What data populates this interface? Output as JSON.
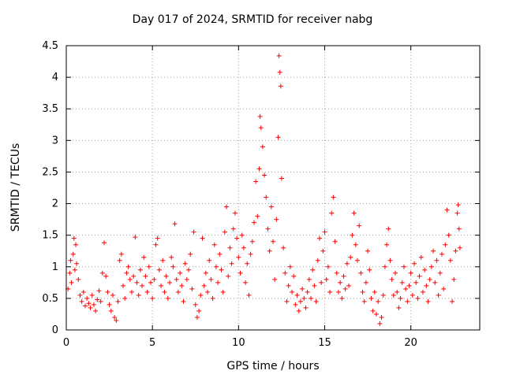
{
  "chart_data": {
    "type": "scatter",
    "title": "Day 017 of 2024, SRMTID for receiver nabg",
    "xlabel": "GPS time / hours",
    "ylabel": "SRMTID / TECUs",
    "xlim": [
      0,
      24
    ],
    "ylim": [
      0,
      4.5
    ],
    "xticks": [
      0,
      5,
      10,
      15,
      20
    ],
    "xtick_labels": [
      "0",
      "5",
      "10",
      "15",
      "20"
    ],
    "yticks": [
      0,
      0.5,
      1,
      1.5,
      2,
      2.5,
      3,
      3.5,
      4,
      4.5
    ],
    "ytick_labels": [
      "0",
      "0.5",
      "1",
      "1.5",
      "2",
      "2.5",
      "3",
      "3.5",
      "4",
      "4.5"
    ],
    "grid": true,
    "marker": "+",
    "color": "#ff0000",
    "series": [
      {
        "name": "SRMTID",
        "points": [
          [
            0.1,
            0.65
          ],
          [
            0.2,
            0.9
          ],
          [
            0.25,
            1.1
          ],
          [
            0.3,
            0.75
          ],
          [
            0.4,
            1.2
          ],
          [
            0.45,
            1.45
          ],
          [
            0.5,
            0.95
          ],
          [
            0.55,
            1.35
          ],
          [
            0.6,
            1.05
          ],
          [
            0.7,
            0.8
          ],
          [
            0.8,
            0.55
          ],
          [
            0.9,
            0.45
          ],
          [
            1.0,
            0.6
          ],
          [
            1.1,
            0.38
          ],
          [
            1.2,
            0.5
          ],
          [
            1.3,
            0.42
          ],
          [
            1.4,
            0.35
          ],
          [
            1.5,
            0.55
          ],
          [
            1.6,
            0.4
          ],
          [
            1.7,
            0.3
          ],
          [
            1.8,
            0.48
          ],
          [
            1.9,
            0.62
          ],
          [
            2.0,
            0.45
          ],
          [
            2.1,
            0.9
          ],
          [
            2.2,
            1.38
          ],
          [
            2.3,
            0.85
          ],
          [
            2.4,
            0.6
          ],
          [
            2.5,
            0.4
          ],
          [
            2.6,
            0.3
          ],
          [
            2.7,
            0.55
          ],
          [
            2.8,
            0.2
          ],
          [
            2.9,
            0.15
          ],
          [
            3.0,
            0.45
          ],
          [
            3.1,
            1.1
          ],
          [
            3.2,
            1.2
          ],
          [
            3.3,
            0.7
          ],
          [
            3.4,
            0.5
          ],
          [
            3.5,
            0.9
          ],
          [
            3.6,
            1.0
          ],
          [
            3.7,
            0.8
          ],
          [
            3.8,
            0.6
          ],
          [
            3.9,
            0.85
          ],
          [
            4.0,
            1.47
          ],
          [
            4.1,
            0.75
          ],
          [
            4.2,
            0.55
          ],
          [
            4.3,
            0.95
          ],
          [
            4.4,
            0.7
          ],
          [
            4.5,
            1.15
          ],
          [
            4.6,
            0.85
          ],
          [
            4.7,
            0.6
          ],
          [
            4.8,
            1.0
          ],
          [
            4.9,
            0.75
          ],
          [
            5.0,
            0.5
          ],
          [
            5.1,
            0.8
          ],
          [
            5.2,
            1.35
          ],
          [
            5.3,
            1.45
          ],
          [
            5.4,
            0.95
          ],
          [
            5.5,
            0.7
          ],
          [
            5.6,
            1.1
          ],
          [
            5.7,
            0.6
          ],
          [
            5.8,
            0.85
          ],
          [
            5.9,
            0.5
          ],
          [
            6.0,
            0.75
          ],
          [
            6.1,
            1.15
          ],
          [
            6.2,
            1.0
          ],
          [
            6.3,
            1.68
          ],
          [
            6.4,
            0.8
          ],
          [
            6.5,
            0.6
          ],
          [
            6.6,
            0.9
          ],
          [
            6.7,
            0.7
          ],
          [
            6.8,
            0.45
          ],
          [
            6.9,
            1.05
          ],
          [
            7.0,
            0.8
          ],
          [
            7.1,
            0.95
          ],
          [
            7.2,
            1.2
          ],
          [
            7.3,
            0.65
          ],
          [
            7.4,
            1.55
          ],
          [
            7.5,
            0.4
          ],
          [
            7.6,
            0.2
          ],
          [
            7.7,
            0.3
          ],
          [
            7.8,
            0.55
          ],
          [
            7.9,
            1.45
          ],
          [
            8.0,
            0.7
          ],
          [
            8.1,
            0.9
          ],
          [
            8.2,
            0.6
          ],
          [
            8.3,
            1.1
          ],
          [
            8.4,
            0.8
          ],
          [
            8.5,
            0.5
          ],
          [
            8.6,
            1.35
          ],
          [
            8.7,
            1.0
          ],
          [
            8.8,
            0.75
          ],
          [
            8.9,
            1.2
          ],
          [
            9.0,
            0.95
          ],
          [
            9.1,
            0.6
          ],
          [
            9.2,
            1.55
          ],
          [
            9.3,
            1.95
          ],
          [
            9.4,
            0.85
          ],
          [
            9.5,
            1.3
          ],
          [
            9.6,
            1.05
          ],
          [
            9.7,
            1.6
          ],
          [
            9.8,
            1.85
          ],
          [
            9.9,
            1.45
          ],
          [
            10.0,
            1.15
          ],
          [
            10.1,
            0.9
          ],
          [
            10.2,
            1.5
          ],
          [
            10.3,
            1.3
          ],
          [
            10.4,
            0.75
          ],
          [
            10.5,
            1.05
          ],
          [
            10.6,
            0.55
          ],
          [
            10.7,
            1.2
          ],
          [
            10.8,
            1.4
          ],
          [
            10.9,
            1.7
          ],
          [
            11.0,
            2.35
          ],
          [
            11.1,
            1.8
          ],
          [
            11.2,
            2.55
          ],
          [
            11.25,
            3.38
          ],
          [
            11.3,
            3.2
          ],
          [
            11.4,
            2.9
          ],
          [
            11.5,
            2.45
          ],
          [
            11.6,
            2.1
          ],
          [
            11.7,
            1.6
          ],
          [
            11.8,
            1.25
          ],
          [
            11.9,
            1.95
          ],
          [
            12.0,
            1.4
          ],
          [
            12.1,
            0.8
          ],
          [
            12.2,
            1.75
          ],
          [
            12.3,
            3.05
          ],
          [
            12.35,
            4.34
          ],
          [
            12.4,
            4.08
          ],
          [
            12.45,
            3.86
          ],
          [
            12.5,
            2.4
          ],
          [
            12.6,
            1.3
          ],
          [
            12.7,
            0.9
          ],
          [
            12.8,
            0.45
          ],
          [
            12.9,
            0.7
          ],
          [
            13.0,
            1.0
          ],
          [
            13.1,
            0.6
          ],
          [
            13.2,
            0.85
          ],
          [
            13.3,
            0.4
          ],
          [
            13.4,
            0.55
          ],
          [
            13.5,
            0.3
          ],
          [
            13.6,
            0.45
          ],
          [
            13.7,
            0.65
          ],
          [
            13.8,
            0.5
          ],
          [
            13.9,
            0.35
          ],
          [
            14.0,
            0.6
          ],
          [
            14.1,
            0.8
          ],
          [
            14.2,
            0.5
          ],
          [
            14.3,
            0.95
          ],
          [
            14.4,
            0.7
          ],
          [
            14.5,
            0.45
          ],
          [
            14.6,
            1.1
          ],
          [
            14.7,
            1.45
          ],
          [
            14.8,
            0.75
          ],
          [
            14.9,
            1.25
          ],
          [
            15.0,
            1.55
          ],
          [
            15.1,
            0.8
          ],
          [
            15.2,
            1.0
          ],
          [
            15.3,
            0.6
          ],
          [
            15.4,
            1.85
          ],
          [
            15.5,
            2.1
          ],
          [
            15.6,
            1.4
          ],
          [
            15.7,
            0.9
          ],
          [
            15.8,
            0.6
          ],
          [
            15.9,
            0.75
          ],
          [
            16.0,
            0.5
          ],
          [
            16.1,
            0.85
          ],
          [
            16.2,
            0.65
          ],
          [
            16.3,
            1.05
          ],
          [
            16.4,
            0.7
          ],
          [
            16.5,
            1.15
          ],
          [
            16.6,
            1.5
          ],
          [
            16.7,
            1.85
          ],
          [
            16.8,
            1.35
          ],
          [
            16.9,
            1.1
          ],
          [
            17.0,
            1.65
          ],
          [
            17.1,
            0.9
          ],
          [
            17.2,
            0.6
          ],
          [
            17.3,
            0.45
          ],
          [
            17.4,
            0.75
          ],
          [
            17.5,
            1.25
          ],
          [
            17.6,
            0.95
          ],
          [
            17.7,
            0.5
          ],
          [
            17.8,
            0.3
          ],
          [
            17.9,
            0.6
          ],
          [
            18.0,
            0.25
          ],
          [
            18.1,
            0.45
          ],
          [
            18.2,
            0.1
          ],
          [
            18.3,
            0.2
          ],
          [
            18.4,
            0.55
          ],
          [
            18.5,
            1.0
          ],
          [
            18.6,
            1.35
          ],
          [
            18.7,
            1.6
          ],
          [
            18.8,
            1.1
          ],
          [
            18.9,
            0.8
          ],
          [
            19.0,
            0.55
          ],
          [
            19.1,
            0.9
          ],
          [
            19.2,
            0.6
          ],
          [
            19.3,
            0.35
          ],
          [
            19.4,
            0.5
          ],
          [
            19.5,
            0.75
          ],
          [
            19.6,
            1.0
          ],
          [
            19.7,
            0.65
          ],
          [
            19.8,
            0.45
          ],
          [
            19.9,
            0.7
          ],
          [
            20.0,
            0.9
          ],
          [
            20.1,
            0.55
          ],
          [
            20.2,
            1.05
          ],
          [
            20.3,
            0.75
          ],
          [
            20.4,
            0.5
          ],
          [
            20.5,
            0.85
          ],
          [
            20.6,
            1.15
          ],
          [
            20.7,
            0.6
          ],
          [
            20.8,
            0.95
          ],
          [
            20.9,
            0.7
          ],
          [
            21.0,
            0.45
          ],
          [
            21.1,
            0.8
          ],
          [
            21.2,
            1.0
          ],
          [
            21.3,
            1.25
          ],
          [
            21.4,
            0.75
          ],
          [
            21.5,
            1.1
          ],
          [
            21.6,
            0.55
          ],
          [
            21.7,
            0.9
          ],
          [
            21.8,
            1.2
          ],
          [
            21.9,
            0.65
          ],
          [
            22.0,
            1.35
          ],
          [
            22.1,
            1.9
          ],
          [
            22.2,
            1.5
          ],
          [
            22.3,
            1.1
          ],
          [
            22.4,
            0.45
          ],
          [
            22.5,
            0.8
          ],
          [
            22.6,
            1.25
          ],
          [
            22.7,
            1.85
          ],
          [
            22.75,
            1.98
          ],
          [
            22.8,
            1.6
          ],
          [
            22.85,
            1.3
          ]
        ]
      }
    ]
  }
}
